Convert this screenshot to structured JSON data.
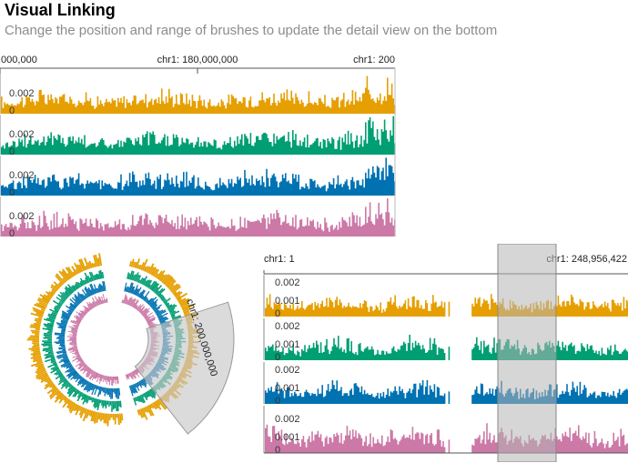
{
  "header": {
    "title": "Visual Linking",
    "subtitle": "Change the position and range of brushes to update the detail view on the bottom"
  },
  "colors": {
    "series": [
      "#E69F00",
      "#009E73",
      "#0072B2",
      "#CC79A7"
    ],
    "brush": "#c8c8c8"
  },
  "detail_view": {
    "axis_labels": [
      ",000,000",
      "chr1: 180,000,000",
      "chr1: 200"
    ],
    "tracks": [
      {
        "tick_value": "0.002",
        "zero_label": "0"
      },
      {
        "tick_value": "0.002",
        "zero_label": "0"
      },
      {
        "tick_value": "0.002",
        "zero_label": "0"
      },
      {
        "tick_value": "0.002",
        "zero_label": "0"
      }
    ]
  },
  "circular_view": {
    "brush_label": "chr1: 200,000,000"
  },
  "overview": {
    "axis_start": "chr1: 1",
    "axis_end": "chr1: 248,956,422",
    "tracks": [
      {
        "tick_top": "0.002",
        "tick_mid": "0.001",
        "zero_label": "0"
      },
      {
        "tick_top": "0.002",
        "tick_mid": "0.001",
        "zero_label": "0"
      },
      {
        "tick_top": "0.002",
        "tick_mid": "0.001",
        "zero_label": "0"
      },
      {
        "tick_top": "0.002",
        "tick_mid": "0.001",
        "zero_label": "0"
      }
    ]
  }
}
